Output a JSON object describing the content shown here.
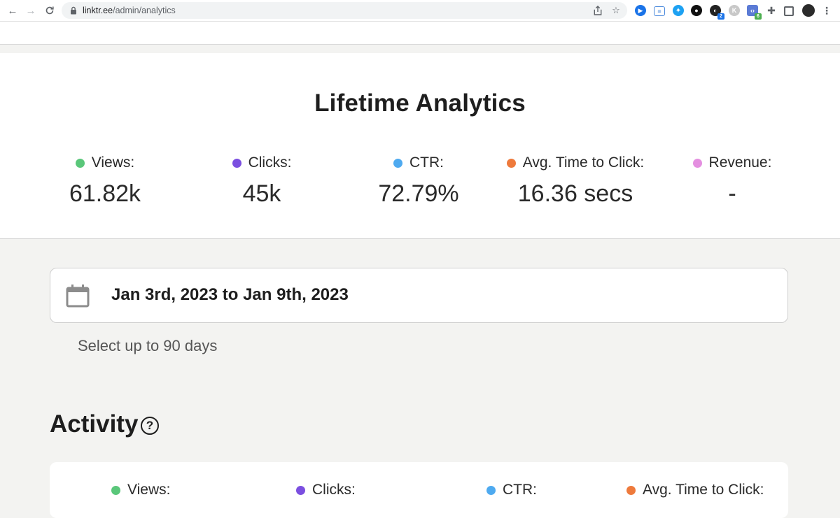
{
  "browser": {
    "url_host": "linktr.ee",
    "url_path": "/admin/analytics",
    "extension_badges": [
      "2",
      "6"
    ]
  },
  "lifetime": {
    "title": "Lifetime Analytics",
    "metrics": [
      {
        "label": "Views:",
        "value": "61.82k",
        "color": "#5ac77a"
      },
      {
        "label": "Clicks:",
        "value": "45k",
        "color": "#7b4fe0"
      },
      {
        "label": "CTR:",
        "value": "72.79%",
        "color": "#4eaaf0"
      },
      {
        "label": "Avg. Time to Click:",
        "value": "16.36 secs",
        "color": "#ee7a3c"
      },
      {
        "label": "Revenue:",
        "value": "-",
        "color": "#e48fe0"
      }
    ]
  },
  "date_range": {
    "text": "Jan 3rd, 2023 to Jan 9th, 2023",
    "hint": "Select up to 90 days"
  },
  "activity": {
    "title": "Activity",
    "help_glyph": "?",
    "metrics": [
      {
        "label": "Views:",
        "color": "#5ac77a"
      },
      {
        "label": "Clicks:",
        "color": "#7b4fe0"
      },
      {
        "label": "CTR:",
        "color": "#4eaaf0"
      },
      {
        "label": "Avg. Time to Click:",
        "color": "#ee7a3c"
      }
    ]
  }
}
